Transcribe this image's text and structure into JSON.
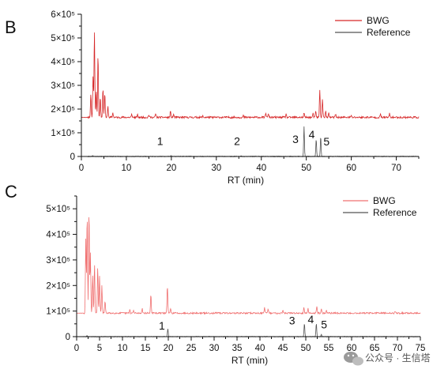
{
  "chart_data": [
    {
      "panel": "B",
      "type": "line",
      "xlabel": "RT (min)",
      "ylabel": "",
      "xlim": [
        0,
        75
      ],
      "ylim": [
        0,
        600000
      ],
      "x_ticks": [
        0,
        10,
        20,
        30,
        40,
        50,
        60,
        70
      ],
      "y_ticks": [
        {
          "value": 0,
          "label": "0"
        },
        {
          "value": 100000,
          "label": "1×10⁵"
        },
        {
          "value": 200000,
          "label": "2×10⁵"
        },
        {
          "value": 300000,
          "label": "3×10⁵"
        },
        {
          "value": 400000,
          "label": "4×10⁵"
        },
        {
          "value": 500000,
          "label": "5×10⁵"
        },
        {
          "value": 600000,
          "label": "6×10⁵"
        }
      ],
      "legend_position": "top-right",
      "series": [
        {
          "name": "BWG",
          "color": "#d62728",
          "baseline": 165000,
          "noise": 4000,
          "peaks": [
            {
              "x": 2.1,
              "y": 260000
            },
            {
              "x": 2.6,
              "y": 340000
            },
            {
              "x": 2.9,
              "y": 530000
            },
            {
              "x": 3.3,
              "y": 280000
            },
            {
              "x": 3.7,
              "y": 430000
            },
            {
              "x": 4.2,
              "y": 250000
            },
            {
              "x": 4.8,
              "y": 290000
            },
            {
              "x": 5.2,
              "y": 270000
            },
            {
              "x": 5.9,
              "y": 210000
            },
            {
              "x": 7.0,
              "y": 185000
            },
            {
              "x": 11.2,
              "y": 178000
            },
            {
              "x": 12.5,
              "y": 176000
            },
            {
              "x": 15.0,
              "y": 176000
            },
            {
              "x": 16.5,
              "y": 180000
            },
            {
              "x": 19.8,
              "y": 190000
            },
            {
              "x": 20.5,
              "y": 178000
            },
            {
              "x": 27.0,
              "y": 170000
            },
            {
              "x": 36.0,
              "y": 172000
            },
            {
              "x": 41.0,
              "y": 185000
            },
            {
              "x": 41.6,
              "y": 181000
            },
            {
              "x": 45.5,
              "y": 178000
            },
            {
              "x": 49.5,
              "y": 185000
            },
            {
              "x": 51.5,
              "y": 180000
            },
            {
              "x": 52.1,
              "y": 190000
            },
            {
              "x": 53.0,
              "y": 280000
            },
            {
              "x": 53.6,
              "y": 240000
            },
            {
              "x": 54.3,
              "y": 192000
            },
            {
              "x": 55.0,
              "y": 182000
            },
            {
              "x": 56.5,
              "y": 178000
            },
            {
              "x": 60.0,
              "y": 172000
            },
            {
              "x": 66.5,
              "y": 178000
            },
            {
              "x": 68.5,
              "y": 180000
            }
          ]
        },
        {
          "name": "Reference",
          "color": "#555555",
          "baseline": 0,
          "noise": 1500,
          "peaks": [
            {
              "x": 2.5,
              "y": 3000
            },
            {
              "x": 19.9,
              "y": 3000
            },
            {
              "x": 35.5,
              "y": 2000
            },
            {
              "x": 49.5,
              "y": 125000
            },
            {
              "x": 52.2,
              "y": 72000
            },
            {
              "x": 53.2,
              "y": 85000
            }
          ]
        }
      ],
      "annotations": [
        {
          "text": "1",
          "x": 17.5,
          "y": 48000
        },
        {
          "text": "2",
          "x": 34.6,
          "y": 48000
        },
        {
          "text": "3",
          "x": 47.6,
          "y": 57000
        },
        {
          "text": "4",
          "x": 51.2,
          "y": 76000
        },
        {
          "text": "5",
          "x": 54.5,
          "y": 46000
        }
      ]
    },
    {
      "panel": "C",
      "type": "line",
      "xlabel": "RT (min)",
      "ylabel": "",
      "xlim": [
        0,
        75
      ],
      "ylim": [
        0,
        550000
      ],
      "x_ticks": [
        0,
        5,
        10,
        15,
        20,
        25,
        30,
        35,
        40,
        45,
        50,
        55,
        60,
        65,
        70,
        75
      ],
      "y_ticks": [
        {
          "value": 0,
          "label": "0"
        },
        {
          "value": 100000,
          "label": "1×10⁵"
        },
        {
          "value": 200000,
          "label": "2×10⁵"
        },
        {
          "value": 300000,
          "label": "3×10⁵"
        },
        {
          "value": 400000,
          "label": "4×10⁵"
        },
        {
          "value": 500000,
          "label": "5×10⁵"
        }
      ],
      "legend_position": "top-right",
      "series": [
        {
          "name": "BWG",
          "color": "#f07070",
          "baseline": 92000,
          "noise": 3000,
          "peaks": [
            {
              "x": 2.0,
              "y": 380000
            },
            {
              "x": 2.3,
              "y": 480000
            },
            {
              "x": 2.7,
              "y": 495000
            },
            {
              "x": 3.0,
              "y": 330000
            },
            {
              "x": 3.5,
              "y": 240000
            },
            {
              "x": 3.9,
              "y": 280000
            },
            {
              "x": 4.6,
              "y": 270000
            },
            {
              "x": 5.0,
              "y": 240000
            },
            {
              "x": 5.5,
              "y": 200000
            },
            {
              "x": 6.2,
              "y": 140000
            },
            {
              "x": 11.6,
              "y": 105000
            },
            {
              "x": 12.4,
              "y": 102000
            },
            {
              "x": 14.3,
              "y": 110000
            },
            {
              "x": 16.2,
              "y": 165000
            },
            {
              "x": 19.8,
              "y": 200000
            },
            {
              "x": 20.5,
              "y": 108000
            },
            {
              "x": 41.0,
              "y": 112000
            },
            {
              "x": 41.8,
              "y": 108000
            },
            {
              "x": 45.0,
              "y": 104000
            },
            {
              "x": 49.6,
              "y": 115000
            },
            {
              "x": 50.5,
              "y": 110000
            },
            {
              "x": 52.4,
              "y": 118000
            },
            {
              "x": 53.4,
              "y": 112000
            },
            {
              "x": 54.5,
              "y": 105000
            },
            {
              "x": 69.5,
              "y": 98000
            }
          ]
        },
        {
          "name": "Reference",
          "color": "#555555",
          "baseline": 0,
          "noise": 1200,
          "peaks": [
            {
              "x": 2.3,
              "y": 4000
            },
            {
              "x": 19.9,
              "y": 30000
            },
            {
              "x": 49.7,
              "y": 52000
            },
            {
              "x": 52.3,
              "y": 52000
            },
            {
              "x": 53.4,
              "y": 9000
            }
          ]
        }
      ],
      "annotations": [
        {
          "text": "1",
          "x": 18.6,
          "y": 28000
        },
        {
          "text": "3",
          "x": 47.0,
          "y": 48000
        },
        {
          "text": "4",
          "x": 51.1,
          "y": 52000
        },
        {
          "text": "5",
          "x": 54.0,
          "y": 33000
        }
      ]
    }
  ],
  "watermark": "公众号 · 生信塔"
}
